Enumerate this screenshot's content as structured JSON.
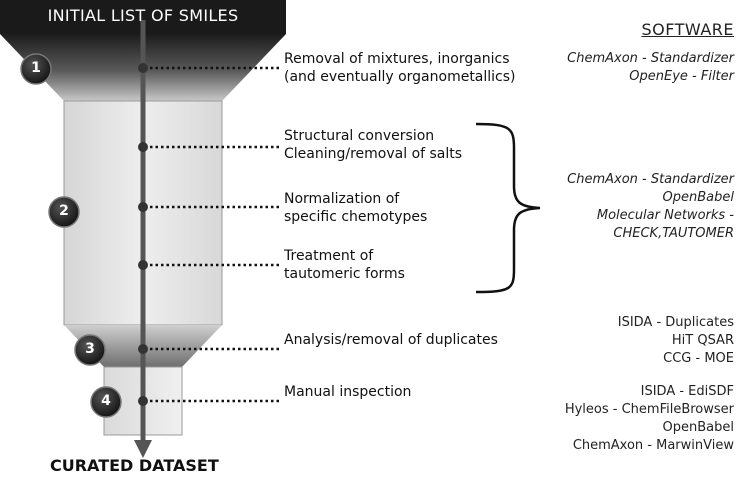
{
  "diagram": {
    "top_label": "INITIAL LIST OF SMILES",
    "bottom_label": "CURATED DATASET",
    "stages": [
      {
        "number": "1"
      },
      {
        "number": "2"
      },
      {
        "number": "3"
      },
      {
        "number": "4"
      }
    ],
    "steps": [
      {
        "lines": [
          "Removal of mixtures, inorganics",
          "(and eventually organometallics)"
        ]
      },
      {
        "lines": [
          "Structural conversion",
          "Cleaning/removal of salts"
        ]
      },
      {
        "lines": [
          "Normalization of",
          "specific chemotypes"
        ]
      },
      {
        "lines": [
          "Treatment of",
          "tautomeric forms"
        ]
      },
      {
        "lines": [
          "Analysis/removal of duplicates"
        ]
      },
      {
        "lines": [
          "Manual inspection"
        ]
      }
    ]
  },
  "software": {
    "header": "SOFTWARE",
    "groups": [
      {
        "style": "italic",
        "lines": [
          "ChemAxon - Standardizer",
          "OpenEye - Filter"
        ]
      },
      {
        "style": "italic",
        "lines": [
          "ChemAxon - Standardizer",
          "OpenBabel",
          "Molecular Networks -",
          "CHECK,TAUTOMER"
        ]
      },
      {
        "style": "normal",
        "lines": [
          "ISIDA - Duplicates",
          "HiT QSAR",
          "CCG - MOE"
        ]
      },
      {
        "style": "normal",
        "lines": [
          "ISIDA - EdiSDF",
          "Hyleos - ChemFileBrowser",
          "OpenBabel",
          "ChemAxon - MarwinView"
        ]
      }
    ]
  },
  "colors": {
    "funnel_dark": "#222222",
    "funnel_mid": "#8a8a8a",
    "funnel_light": "#e6e6e6",
    "arrow": "#555555",
    "badge": "#2b2b2b"
  }
}
